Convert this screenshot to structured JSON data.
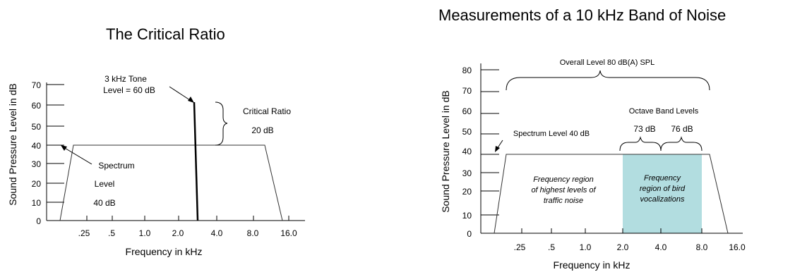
{
  "left": {
    "title": "The Critical Ratio",
    "ylabel": "Sound Pressure Level in dB",
    "xlabel": "Frequency in kHz",
    "yticks": [
      "0",
      "10",
      "20",
      "30",
      "40",
      "50",
      "60",
      "70"
    ],
    "xticks": [
      ".25",
      ".5",
      "1.0",
      "2.0",
      "4.0",
      "8.0",
      "16.0"
    ],
    "tone_label": "3 kHz Tone",
    "tone_level": "Level = 60 dB",
    "critical_ratio_label": "Critical Ratio",
    "critical_ratio_value": "20 dB",
    "spectrum_label_1": "Spectrum",
    "spectrum_label_2": "Level",
    "spectrum_label_3": "40 dB"
  },
  "right": {
    "title": "Measurements of a 10 kHz Band of Noise",
    "ylabel": "Sound Pressure Level in dB",
    "xlabel": "Frequency in kHz",
    "yticks": [
      "0",
      "10",
      "20",
      "30",
      "40",
      "50",
      "60",
      "70",
      "80"
    ],
    "xticks": [
      ".25",
      ".5",
      "1.0",
      "2.0",
      "4.0",
      "8.0",
      "16.0"
    ],
    "overall_label": "Overall Level 80 dB(A) SPL",
    "octave_label": "Octave Band Levels",
    "octave_1": "73 dB",
    "octave_2": "76 dB",
    "spectrum_label": "Spectrum Level 40 dB",
    "traffic_1": "Frequency region",
    "traffic_2": "of highest levels of",
    "traffic_3": "traffic noise",
    "bird_1": "Frequency",
    "bird_2": "region of bird",
    "bird_3": "vocalizations",
    "bird_color": "#b2dde0"
  }
}
